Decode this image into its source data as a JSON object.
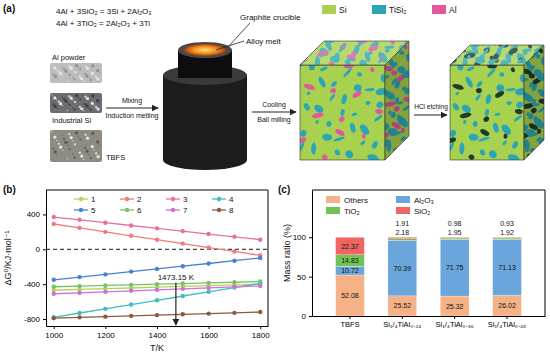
{
  "diagram": {
    "panel": "(a)",
    "equations": [
      "4Al + 3SiO₂ = 3Si + 2Al₂O₃",
      "4Al + 3TiO₂ = 2Al₂O₃ + 3Ti"
    ],
    "crucible_label": "Graphite crucible",
    "melt_label": "Alloy melt",
    "materials": [
      "Al powder",
      "Industrial Si",
      "TBFS"
    ],
    "steps": [
      "Mixing",
      "Induction melting",
      "Cooling",
      "Ball milling",
      "HCl etching"
    ],
    "legend": [
      {
        "label": "Si",
        "color": "#a8d14f"
      },
      {
        "label": "TiSi₂",
        "color": "#2ca6b5"
      },
      {
        "label": "Al",
        "color": "#e2589c"
      }
    ]
  },
  "chart_data": [
    {
      "type": "line",
      "panel": "(b)",
      "x_label": "T/K",
      "y_label": "ΔG⁰/KJ·mol⁻¹",
      "x": [
        1000,
        1100,
        1200,
        1300,
        1400,
        1500,
        1600,
        1700,
        1800
      ],
      "xlim": [
        970,
        1830
      ],
      "xticks": [
        1000,
        1200,
        1400,
        1600,
        1800
      ],
      "ylim": [
        -880,
        680
      ],
      "yticks": [
        -800,
        -400,
        0,
        400
      ],
      "marker": "circle",
      "legend": "top",
      "series": [
        {
          "name": "1",
          "color": "#b3d35a",
          "values": [
            -470,
            -461,
            -452,
            -444,
            -435,
            -426,
            -417,
            -409,
            -400
          ]
        },
        {
          "name": "2",
          "color": "#f07c7c",
          "values": [
            290,
            245,
            200,
            155,
            110,
            65,
            20,
            -25,
            -70
          ]
        },
        {
          "name": "3",
          "color": "#e8709e",
          "values": [
            370,
            338,
            305,
            273,
            240,
            208,
            175,
            143,
            110
          ]
        },
        {
          "name": "4",
          "color": "#3dbfbf",
          "values": [
            -780,
            -731,
            -683,
            -634,
            -585,
            -536,
            -488,
            -439,
            -390
          ]
        },
        {
          "name": "5",
          "color": "#4a7fd8",
          "values": [
            -350,
            -319,
            -288,
            -256,
            -225,
            -194,
            -163,
            -131,
            -100
          ]
        },
        {
          "name": "6",
          "color": "#76c26a",
          "values": [
            -430,
            -423,
            -415,
            -408,
            -400,
            -393,
            -385,
            -378,
            -370
          ]
        },
        {
          "name": "7",
          "color": "#d070d4",
          "values": [
            -510,
            -499,
            -488,
            -476,
            -465,
            -454,
            -443,
            -431,
            -420
          ]
        },
        {
          "name": "8",
          "color": "#8b5a3c",
          "values": [
            -790,
            -781,
            -773,
            -764,
            -755,
            -746,
            -738,
            -729,
            -720
          ]
        }
      ],
      "reference_lines": [
        {
          "y": 0,
          "line_style": "dashed"
        }
      ],
      "annotations": [
        {
          "x": 1473.15,
          "text": "1473.15 K"
        }
      ]
    },
    {
      "type": "bar",
      "stacked": true,
      "panel": "(c)",
      "y_label": "Mass ratio (%)",
      "categories": [
        "TBFS",
        "Si₁/₄TiAl₀.₂₄",
        "Si₁/₄TiAl₀.₃₆",
        "Si₁/₄TiAl₀.₄₈"
      ],
      "ylim": [
        0,
        160
      ],
      "yticks": [
        0,
        50,
        100
      ],
      "data_labels": true,
      "legend": "top",
      "series": [
        {
          "name": "Others",
          "color": "#f5b286",
          "values": [
            52.08,
            25.52,
            25.32,
            26.02
          ]
        },
        {
          "name": "Al₂O₃",
          "color": "#6aa5dc",
          "values": [
            10.72,
            70.39,
            71.75,
            71.13
          ]
        },
        {
          "name": "TiO₂",
          "color": "#74c157",
          "values": [
            14.83,
            2.18,
            1.95,
            1.92
          ]
        },
        {
          "name": "SiO₂",
          "color": "#f06464",
          "values": [
            22.37,
            1.91,
            0.98,
            0.93
          ]
        }
      ]
    }
  ]
}
